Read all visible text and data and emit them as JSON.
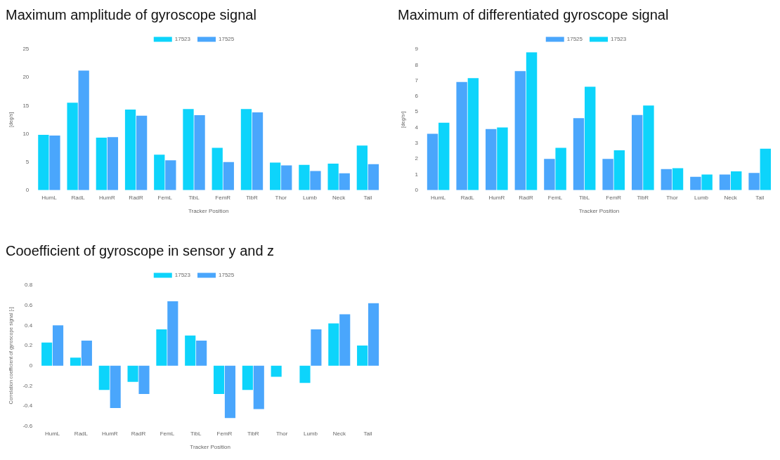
{
  "chart_data": [
    {
      "type": "bar",
      "title": "Maximum amplitude of gyroscope signal",
      "xlabel": "Tracker Position",
      "ylabel": "[deg/s]",
      "categories": [
        "HumL",
        "RadL",
        "HumR",
        "RadR",
        "FemL",
        "TibL",
        "FemR",
        "TibR",
        "Thor",
        "Lumb",
        "Neck",
        "Tail"
      ],
      "series": [
        {
          "name": "17523",
          "color": "#0dd4fb",
          "values": [
            9.8,
            15.5,
            9.3,
            14.3,
            6.3,
            14.4,
            7.5,
            14.4,
            4.9,
            4.5,
            4.7,
            7.9
          ]
        },
        {
          "name": "17525",
          "color": "#4aa6fc",
          "values": [
            9.7,
            21.2,
            9.4,
            13.2,
            5.3,
            13.3,
            5.0,
            13.8,
            4.4,
            3.4,
            3.0,
            4.6
          ]
        }
      ],
      "ylim": [
        0,
        25
      ],
      "yticks": [
        0,
        5,
        10,
        15,
        20,
        25
      ],
      "grid": false,
      "legend": "top"
    },
    {
      "type": "bar",
      "title": "Maximum of differentiated gyroscope signal",
      "xlabel": "Tracker Position",
      "ylabel": "[deg/s²]",
      "categories": [
        "HumL",
        "RadL",
        "HumR",
        "RadR",
        "FemL",
        "TibL",
        "FemR",
        "TibR",
        "Thor",
        "Lumb",
        "Neck",
        "Tail"
      ],
      "series": [
        {
          "name": "17525",
          "color": "#4aa6fc",
          "values": [
            3.6,
            6.9,
            3.9,
            7.6,
            2.0,
            4.6,
            2.0,
            4.8,
            1.35,
            0.85,
            1.0,
            1.1
          ]
        },
        {
          "name": "17523",
          "color": "#0dd4fb",
          "values": [
            4.3,
            7.15,
            4.0,
            8.8,
            2.7,
            6.6,
            2.55,
            5.4,
            1.4,
            1.0,
            1.2,
            2.65
          ]
        }
      ],
      "ylim": [
        0,
        9
      ],
      "yticks": [
        0,
        1,
        2,
        3,
        4,
        5,
        6,
        7,
        8,
        9
      ],
      "grid": false,
      "legend": "top"
    },
    {
      "type": "bar",
      "title": "Cooefficient of gyroscope in sensor y and z",
      "xlabel": "Tracker Position",
      "ylabel": "Correlation coefficient of gyroscope signal [-]",
      "categories": [
        "HumL",
        "RadL",
        "HumR",
        "RadR",
        "FemL",
        "TibL",
        "FemR",
        "TibR",
        "Thor",
        "Lumb",
        "Neck",
        "Tail"
      ],
      "series": [
        {
          "name": "17523",
          "color": "#0dd4fb",
          "values": [
            0.23,
            0.08,
            -0.24,
            -0.16,
            0.36,
            0.3,
            -0.28,
            -0.24,
            -0.11,
            -0.17,
            0.42,
            0.2
          ]
        },
        {
          "name": "17525",
          "color": "#4aa6fc",
          "values": [
            0.4,
            0.25,
            -0.42,
            -0.28,
            0.64,
            0.25,
            -0.52,
            -0.43,
            null,
            0.36,
            0.51,
            0.62
          ]
        }
      ],
      "ylim": [
        -0.6,
        0.8
      ],
      "yticks": [
        -0.6,
        -0.4,
        -0.2,
        0,
        0.2,
        0.4,
        0.6,
        0.8
      ],
      "grid": false,
      "legend": "top"
    }
  ]
}
